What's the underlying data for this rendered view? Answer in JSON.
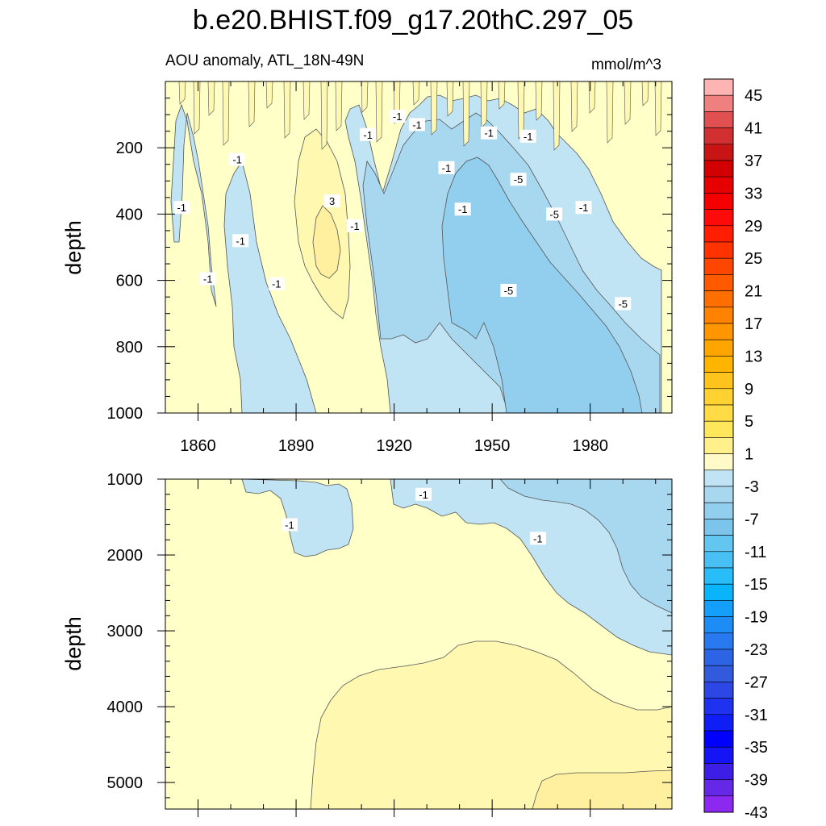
{
  "chart_data": {
    "type": "contour",
    "title": "b.e20.BHIST.f09_g17.20thC.297_05",
    "subtitle_left": "AOU anomaly, ATL_18N-49N",
    "subtitle_right": "mmol/m^3",
    "ylabel": "depth",
    "xlim": [
      1850,
      2005
    ],
    "x_ticks": [
      1860,
      1890,
      1920,
      1950,
      1980
    ],
    "panels": [
      {
        "name": "upper",
        "ylim": [
          1000,
          0
        ],
        "y_ticks": [
          200,
          400,
          600,
          800,
          1000
        ],
        "contour_labels": [
          {
            "text": "-1",
            "x": 1855,
            "y": 380
          },
          {
            "text": "-1",
            "x": 1863,
            "y": 595
          },
          {
            "text": "-1",
            "x": 1872,
            "y": 235
          },
          {
            "text": "-1",
            "x": 1873,
            "y": 480
          },
          {
            "text": "-1",
            "x": 1884,
            "y": 610
          },
          {
            "text": "3",
            "x": 1901,
            "y": 360
          },
          {
            "text": "-1",
            "x": 1908,
            "y": 435
          },
          {
            "text": "-1",
            "x": 1912,
            "y": 160
          },
          {
            "text": "-1",
            "x": 1921,
            "y": 105
          },
          {
            "text": "-1",
            "x": 1927,
            "y": 130
          },
          {
            "text": "-1",
            "x": 1936,
            "y": 260
          },
          {
            "text": "-1",
            "x": 1941,
            "y": 385
          },
          {
            "text": "-1",
            "x": 1949,
            "y": 155
          },
          {
            "text": "-5",
            "x": 1958,
            "y": 295
          },
          {
            "text": "-1",
            "x": 1961,
            "y": 165
          },
          {
            "text": "-5",
            "x": 1955,
            "y": 630
          },
          {
            "text": "-5",
            "x": 1969,
            "y": 400
          },
          {
            "text": "-1",
            "x": 1978,
            "y": 380
          },
          {
            "text": "-5",
            "x": 1990,
            "y": 670
          }
        ]
      },
      {
        "name": "lower",
        "ylim": [
          5350,
          1000
        ],
        "y_ticks": [
          1000,
          2000,
          3000,
          4000,
          5000
        ],
        "contour_labels": [
          {
            "text": "-1",
            "x": 1888,
            "y": 1600
          },
          {
            "text": "-1",
            "x": 1929,
            "y": 1200
          },
          {
            "text": "-1",
            "x": 1964,
            "y": 1780
          }
        ]
      }
    ],
    "colorbar": {
      "tick_labels": [
        "45",
        "41",
        "37",
        "33",
        "29",
        "25",
        "21",
        "17",
        "13",
        "9",
        "5",
        "1",
        "-3",
        "-7",
        "-11",
        "-15",
        "-19",
        "-23",
        "-27",
        "-31",
        "-35",
        "-39",
        "-43"
      ],
      "colors": [
        "#ffb4b4",
        "#f08080",
        "#e05050",
        "#d23030",
        "#c81414",
        "#d20000",
        "#e60000",
        "#f50000",
        "#ff0a0a",
        "#ff1e00",
        "#ff3200",
        "#ff4600",
        "#ff5a00",
        "#ff6e00",
        "#ff8200",
        "#ff9600",
        "#ffa500",
        "#ffb400",
        "#ffc31e",
        "#ffd232",
        "#ffdc46",
        "#ffe65a",
        "#fff08c",
        "#fffac8",
        "#c0e4f4",
        "#a8d8f0",
        "#92ceee",
        "#7cc4ec",
        "#62c6f0",
        "#48c0f4",
        "#28bcf8",
        "#0ab4fa",
        "#14a0fa",
        "#1e8cf5",
        "#2878f0",
        "#2d64e6",
        "#325adc",
        "#2d46e6",
        "#1e32f0",
        "#0f1ef5",
        "#0000ff",
        "#1414f5",
        "#3c1ee6",
        "#6428e6",
        "#8c28f0"
      ]
    },
    "fill_colors": {
      "pos_1": "#ffffc8",
      "pos_3": "#fff8b0",
      "pos_5": "#fff0a0",
      "pos_7": "#ffe880",
      "neg_1": "#c0e4f4",
      "neg_3": "#a8d8f0",
      "neg_5": "#92ceee"
    }
  }
}
